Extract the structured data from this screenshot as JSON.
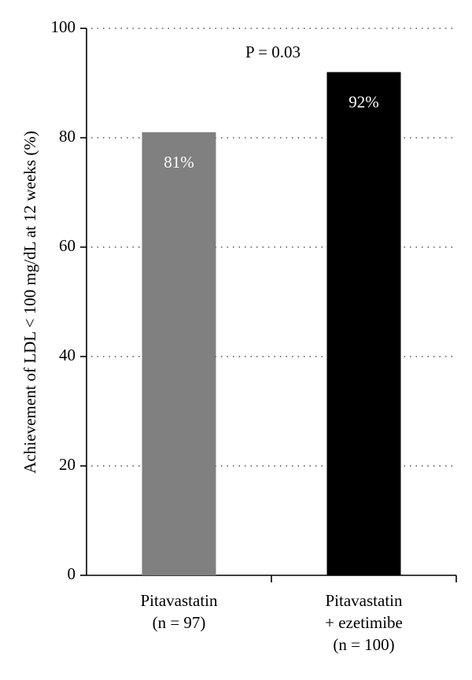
{
  "chart_data": {
    "type": "bar",
    "y_label": "Achievement of LDL < 100 mg/dL at 12 weeks (%)",
    "annotation": "P = 0.03",
    "categories": [
      [
        "Pitavastatin",
        "(n = 97)"
      ],
      [
        "Pitavastatin",
        "+ ezetimibe",
        "(n = 100)"
      ]
    ],
    "values": [
      81,
      92
    ],
    "value_labels": [
      "81%",
      "92%"
    ],
    "colors": [
      "#808080",
      "#000000"
    ],
    "ylim": [
      0,
      100
    ],
    "yticks": [
      0,
      20,
      40,
      60,
      80,
      100
    ],
    "grid": true
  }
}
